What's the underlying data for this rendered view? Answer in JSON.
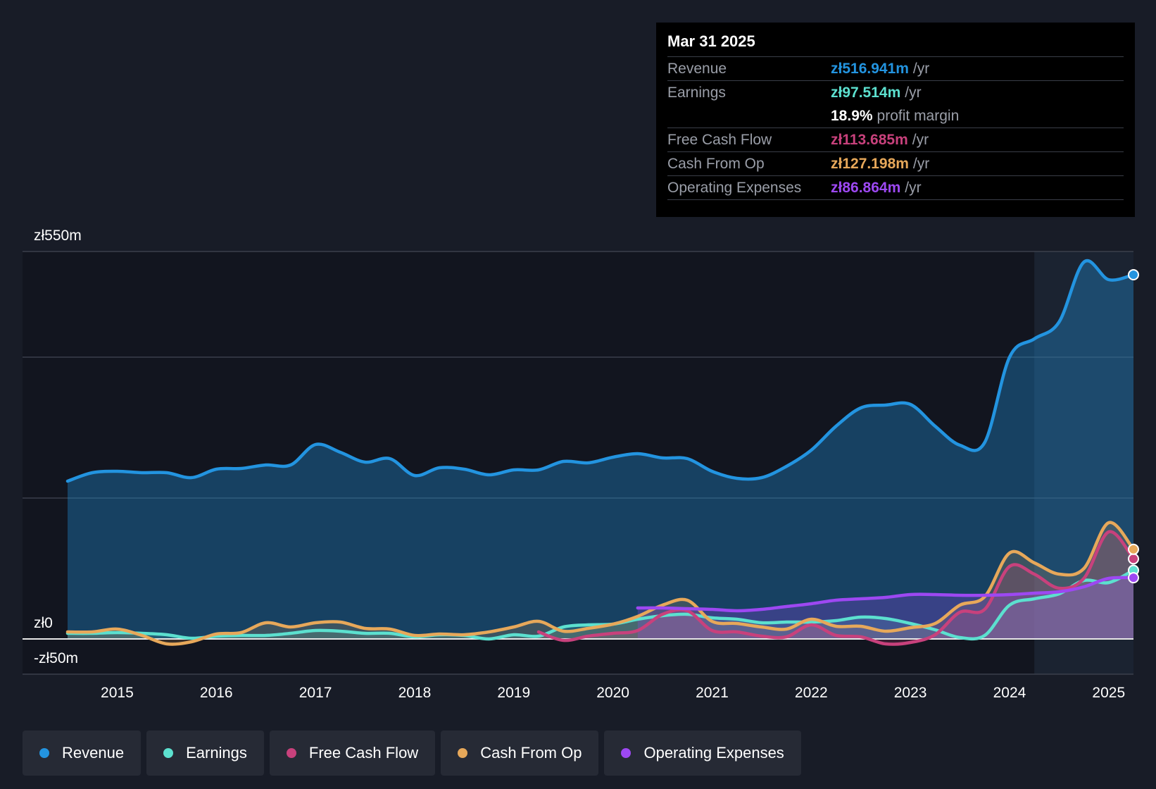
{
  "tooltip": {
    "date": "Mar 31 2025",
    "rows": [
      {
        "label": "Revenue",
        "value": "zł516.941m",
        "unit": "/yr"
      },
      {
        "label": "Earnings",
        "value": "zł97.514m",
        "unit": "/yr"
      },
      {
        "label": "",
        "value": "18.9%",
        "unit": "profit margin"
      },
      {
        "label": "Free Cash Flow",
        "value": "zł113.685m",
        "unit": "/yr"
      },
      {
        "label": "Cash From Op",
        "value": "zł127.198m",
        "unit": "/yr"
      },
      {
        "label": "Operating Expenses",
        "value": "zł86.864m",
        "unit": "/yr"
      }
    ]
  },
  "legend": [
    {
      "label": "Revenue",
      "color": "#2394e0"
    },
    {
      "label": "Earnings",
      "color": "#5ce0cf"
    },
    {
      "label": "Free Cash Flow",
      "color": "#c8417c"
    },
    {
      "label": "Cash From Op",
      "color": "#e7a85a"
    },
    {
      "label": "Operating Expenses",
      "color": "#9d48f2"
    }
  ],
  "chart_data": {
    "type": "area",
    "title": "",
    "xlabel": "",
    "ylabel": "",
    "ylim": [
      -50,
      550
    ],
    "y_tick_labels": [
      "zł550m",
      "zł0",
      "-zł50m"
    ],
    "x_tick_labels": [
      "2015",
      "2016",
      "2017",
      "2018",
      "2019",
      "2020",
      "2021",
      "2022",
      "2023",
      "2024",
      "2025"
    ],
    "xlim": [
      2014.5,
      2025.25
    ],
    "highlight_start": 2024.25,
    "series": [
      {
        "name": "Revenue",
        "color": "#2394e0",
        "x": [
          2014.5,
          2014.75,
          2015,
          2015.25,
          2015.5,
          2015.75,
          2016,
          2016.25,
          2016.5,
          2016.75,
          2017,
          2017.25,
          2017.5,
          2017.75,
          2018,
          2018.25,
          2018.5,
          2018.75,
          2019,
          2019.25,
          2019.5,
          2019.75,
          2020,
          2020.25,
          2020.5,
          2020.75,
          2021,
          2021.25,
          2021.5,
          2021.75,
          2022,
          2022.25,
          2022.5,
          2022.75,
          2023,
          2023.25,
          2023.5,
          2023.75,
          2024,
          2024.25,
          2024.5,
          2024.75,
          2025,
          2025.25
        ],
        "y": [
          224,
          236,
          238,
          236,
          236,
          229,
          241,
          242,
          247,
          247,
          276,
          265,
          251,
          256,
          232,
          243,
          241,
          233,
          240,
          240,
          252,
          250,
          258,
          263,
          257,
          256,
          238,
          228,
          229,
          245,
          268,
          302,
          328,
          332,
          333,
          302,
          275,
          279,
          400,
          426,
          450,
          535,
          510,
          517
        ]
      },
      {
        "name": "Earnings",
        "color": "#5ce0cf",
        "x": [
          2014.5,
          2014.75,
          2015,
          2015.25,
          2015.5,
          2015.75,
          2016,
          2016.25,
          2016.5,
          2016.75,
          2017,
          2017.25,
          2017.5,
          2017.75,
          2018,
          2018.25,
          2018.5,
          2018.75,
          2019,
          2019.25,
          2019.5,
          2019.75,
          2020,
          2020.25,
          2020.5,
          2020.75,
          2021,
          2021.25,
          2021.5,
          2021.75,
          2022,
          2022.25,
          2022.5,
          2022.75,
          2023,
          2023.25,
          2023.5,
          2023.75,
          2024,
          2024.25,
          2024.5,
          2024.75,
          2025,
          2025.25
        ],
        "y": [
          8,
          8,
          9,
          8,
          6,
          1,
          4,
          5,
          5,
          8,
          12,
          11,
          8,
          8,
          3,
          6,
          5,
          0,
          6,
          4,
          17,
          20,
          21,
          28,
          33,
          35,
          30,
          28,
          23,
          24,
          24,
          26,
          31,
          29,
          22,
          13,
          2,
          5,
          48,
          57,
          64,
          83,
          80,
          97.5
        ]
      },
      {
        "name": "Free Cash Flow",
        "color": "#c8417c",
        "x": [
          2019.25,
          2019.5,
          2019.75,
          2020,
          2020.25,
          2020.5,
          2020.75,
          2021,
          2021.25,
          2021.5,
          2021.75,
          2022,
          2022.25,
          2022.5,
          2022.75,
          2023,
          2023.25,
          2023.5,
          2023.75,
          2024,
          2024.25,
          2024.5,
          2024.75,
          2025,
          2025.25
        ],
        "y": [
          10,
          -2,
          4,
          8,
          12,
          35,
          40,
          12,
          10,
          4,
          3,
          20,
          5,
          3,
          -7,
          -5,
          6,
          38,
          42,
          103,
          92,
          72,
          86,
          152,
          113.7
        ]
      },
      {
        "name": "Cash From Op",
        "color": "#e7a85a",
        "x": [
          2014.5,
          2014.75,
          2015,
          2015.25,
          2015.5,
          2015.75,
          2016,
          2016.25,
          2016.5,
          2016.75,
          2017,
          2017.25,
          2017.5,
          2017.75,
          2018,
          2018.25,
          2018.5,
          2018.75,
          2019,
          2019.25,
          2019.5,
          2019.75,
          2020,
          2020.25,
          2020.5,
          2020.75,
          2021,
          2021.25,
          2021.5,
          2021.75,
          2022,
          2022.25,
          2022.5,
          2022.75,
          2023,
          2023.25,
          2023.5,
          2023.75,
          2024,
          2024.25,
          2024.5,
          2024.75,
          2025,
          2025.25
        ],
        "y": [
          10,
          10,
          14,
          5,
          -7,
          -4,
          7,
          9,
          23,
          17,
          23,
          24,
          15,
          14,
          5,
          7,
          6,
          10,
          17,
          25,
          11,
          15,
          21,
          32,
          48,
          55,
          25,
          22,
          17,
          14,
          28,
          18,
          18,
          11,
          16,
          22,
          48,
          60,
          122,
          108,
          92,
          100,
          165,
          127.2
        ]
      },
      {
        "name": "Operating Expenses",
        "color": "#9d48f2",
        "x": [
          2020.25,
          2020.5,
          2020.75,
          2021,
          2021.25,
          2021.5,
          2021.75,
          2022,
          2022.25,
          2022.5,
          2022.75,
          2023,
          2023.25,
          2023.5,
          2023.75,
          2024,
          2024.25,
          2024.5,
          2024.75,
          2025,
          2025.25
        ],
        "y": [
          44,
          44,
          43,
          42,
          40,
          42,
          46,
          50,
          55,
          57,
          59,
          63,
          63,
          62,
          62,
          63,
          65,
          67,
          74,
          86,
          86.9
        ]
      }
    ]
  }
}
